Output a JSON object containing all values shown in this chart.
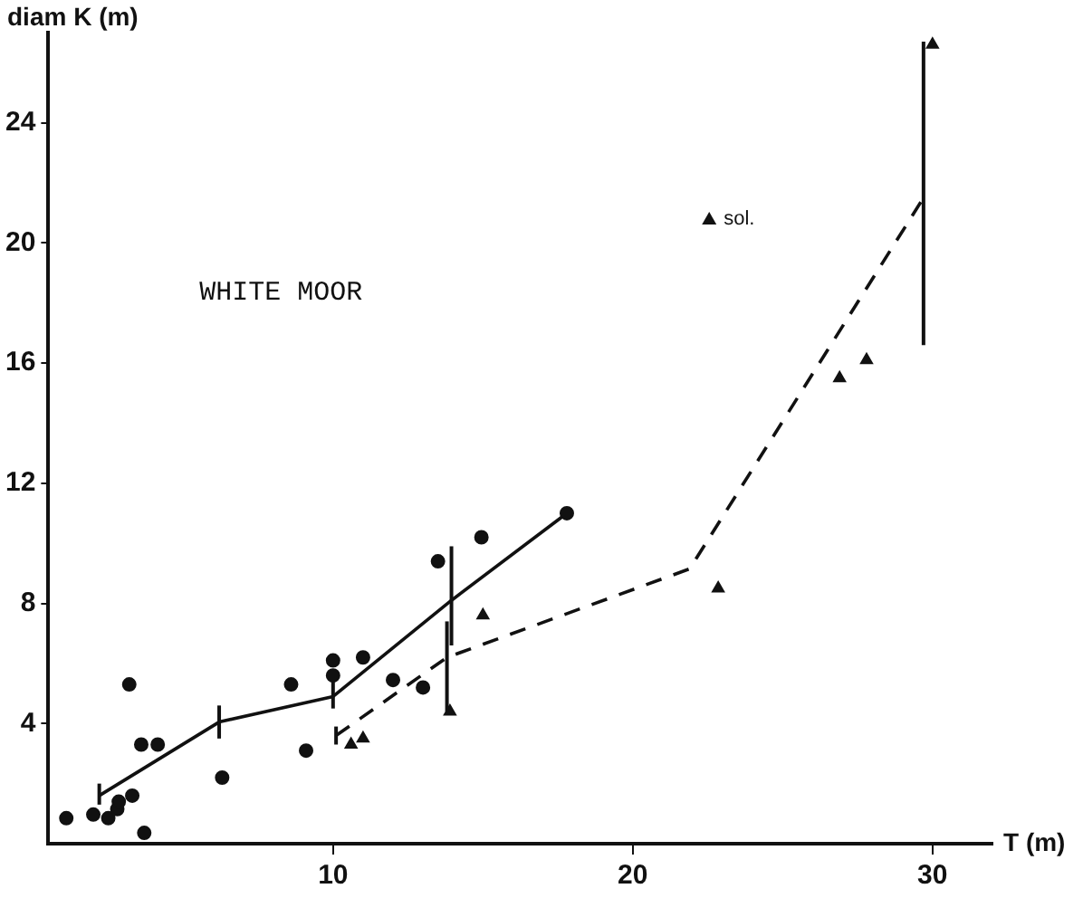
{
  "chart_data": {
    "type": "scatter",
    "xlabel": "T (m)",
    "ylabel": "diam K (m)",
    "annotations": [
      "WHITE MOOR"
    ],
    "xlim": [
      0.5,
      32
    ],
    "xticks": [
      10,
      20,
      30
    ],
    "ylim": [
      0,
      27
    ],
    "yticks": [
      4,
      8,
      12,
      16,
      20,
      24
    ],
    "grid": false,
    "legend": "top right",
    "series": [
      {
        "type": "scatter",
        "marker": "circle",
        "color": "#111111",
        "x": [
          1.1,
          2.0,
          2.5,
          2.8,
          2.85,
          3.3,
          3.2,
          3.6,
          4.15,
          3.7,
          6.3,
          8.6,
          9.1,
          10.0,
          10.0,
          11.0,
          12.0,
          13.0,
          13.5,
          14.95,
          17.8
        ],
        "values": [
          0.85,
          0.97,
          0.85,
          1.15,
          1.4,
          1.6,
          5.3,
          3.3,
          3.3,
          0.36,
          2.2,
          5.3,
          3.1,
          6.1,
          5.6,
          6.2,
          5.45,
          5.2,
          9.4,
          10.2,
          11.0
        ]
      },
      {
        "type": "scatter",
        "marker": "triangle",
        "color": "#111111",
        "x": [
          10.6,
          11.0,
          13.9,
          15.0,
          22.85
        ],
        "values": [
          3.3,
          3.5,
          4.4,
          7.6,
          8.5
        ]
      },
      {
        "type": "scatter",
        "marker": "triangle",
        "name": "sol.",
        "color": "#111111",
        "x": [
          26.9,
          27.8,
          30.0
        ],
        "values": [
          15.5,
          16.1,
          26.6
        ]
      },
      {
        "type": "line",
        "marker": "none",
        "line_style": "solid",
        "color": "#111111",
        "x": [
          2.2,
          6.2,
          10.0,
          13.95,
          17.8
        ],
        "values": [
          1.6,
          4.05,
          4.9,
          8.1,
          11.0
        ],
        "errors": [
          [
            1.3,
            2.0
          ],
          [
            3.5,
            4.6
          ],
          [
            4.5,
            5.4
          ],
          [
            6.6,
            9.9
          ],
          null
        ]
      },
      {
        "type": "line",
        "marker": "none",
        "line_style": "dashed",
        "color": "#111111",
        "x": [
          10.1,
          13.8,
          21.9,
          29.7
        ],
        "values": [
          3.6,
          6.2,
          9.15,
          21.5
        ],
        "errors": [
          [
            3.3,
            3.9
          ],
          [
            4.4,
            7.4
          ],
          null,
          [
            16.6,
            26.7
          ]
        ]
      }
    ]
  }
}
